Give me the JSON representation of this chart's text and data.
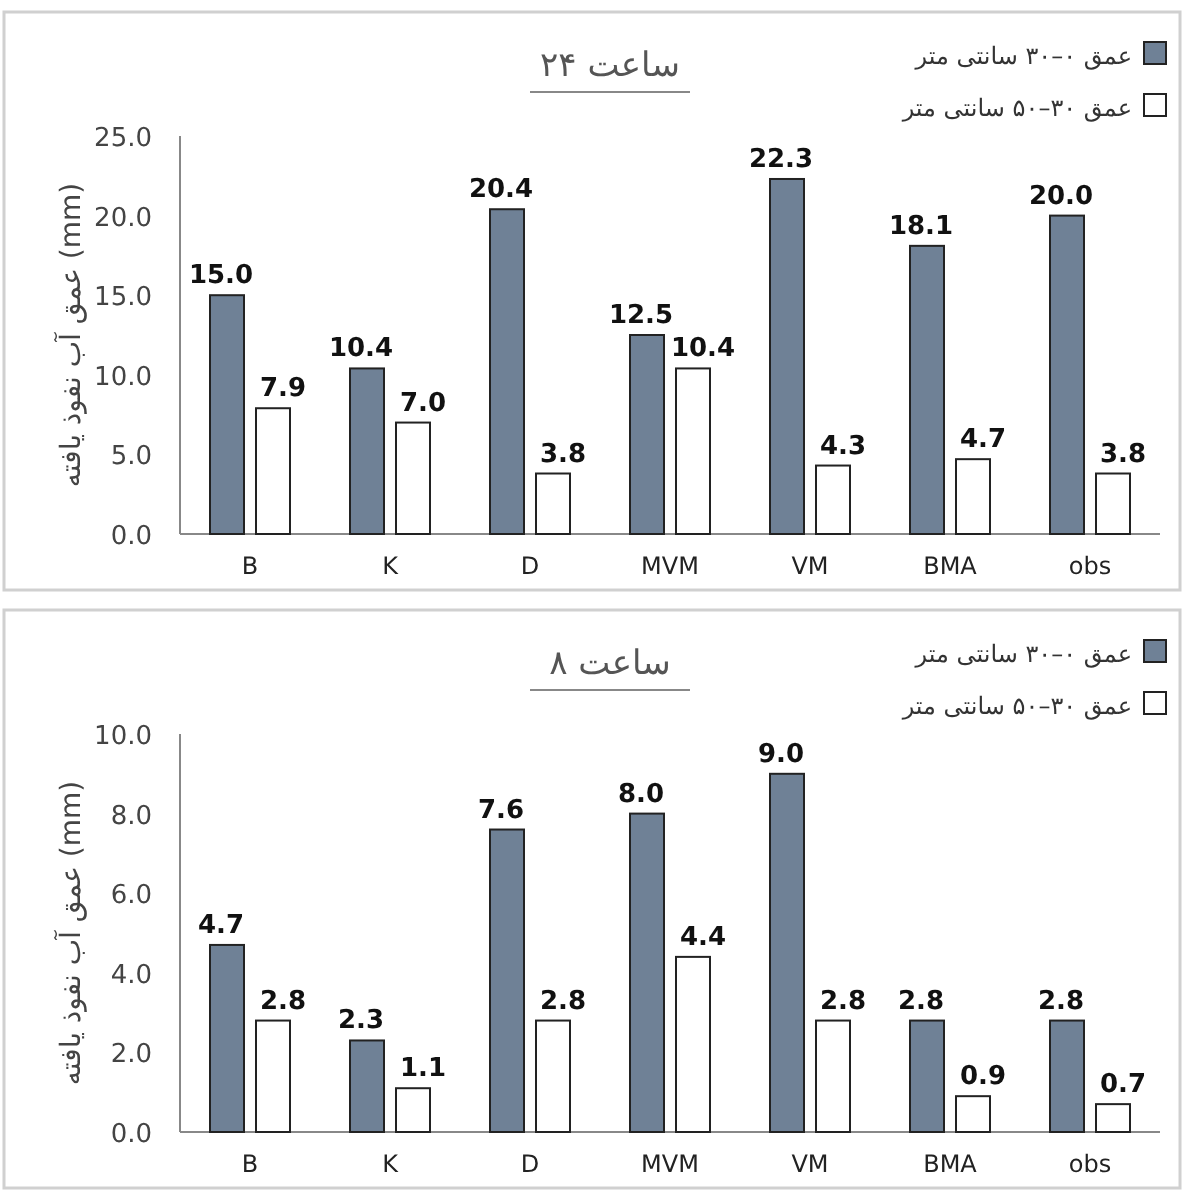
{
  "chart_data": [
    {
      "type": "bar",
      "title": "۲۴ ساعت",
      "ylabel": "عمق آب نفوذ یافته (mm)",
      "categories": [
        "B",
        "K",
        "D",
        "MVM",
        "VM",
        "BMA",
        "obs"
      ],
      "series": [
        {
          "name": "عمق ۰–۳۰ سانتی متر",
          "color": "#6f8196",
          "values": [
            15.0,
            10.4,
            20.4,
            12.5,
            22.3,
            18.1,
            20.0
          ],
          "value_labels": [
            "15.0",
            "10.4",
            "20.4",
            "12.5",
            "22.3",
            "18.1",
            "20.0"
          ]
        },
        {
          "name": "عمق ۳۰–۵۰ سانتی متر",
          "color": "#ffffff",
          "values": [
            7.9,
            7.0,
            3.8,
            10.4,
            4.3,
            4.7,
            3.8
          ],
          "value_labels": [
            "7.9",
            "7.0",
            "3.8",
            "10.4",
            "4.3",
            "4.7",
            "3.8"
          ]
        }
      ],
      "ylim": [
        0,
        25
      ],
      "yticks": [
        {
          "value": 0,
          "label": "0.0"
        },
        {
          "value": 5,
          "label": "5.0"
        },
        {
          "value": 10,
          "label": "10.0"
        },
        {
          "value": 15,
          "label": "15.0"
        },
        {
          "value": 20,
          "label": "20.0"
        },
        {
          "value": 25,
          "label": "25.0"
        }
      ],
      "grid": false,
      "legend": "top right"
    },
    {
      "type": "bar",
      "title": "۸ ساعت",
      "ylabel": "عمق آب نفوذ یافته (mm)",
      "categories": [
        "B",
        "K",
        "D",
        "MVM",
        "VM",
        "BMA",
        "obs"
      ],
      "series": [
        {
          "name": "عمق ۰–۳۰ سانتی متر",
          "color": "#6f8196",
          "values": [
            4.7,
            2.3,
            7.6,
            8.0,
            9.0,
            2.8,
            2.8
          ],
          "value_labels": [
            "4.7",
            "2.3",
            "7.6",
            "8.0",
            "9.0",
            "2.8",
            "2.8"
          ]
        },
        {
          "name": "عمق ۳۰–۵۰ سانتی متر",
          "color": "#ffffff",
          "values": [
            2.8,
            1.1,
            2.8,
            4.4,
            2.8,
            0.9,
            0.7
          ],
          "value_labels": [
            "2.8",
            "1.1",
            "2.8",
            "4.4",
            "2.8",
            "0.9",
            "0.7"
          ]
        }
      ],
      "ylim": [
        0,
        10
      ],
      "yticks": [
        {
          "value": 0,
          "label": "0.0"
        },
        {
          "value": 2,
          "label": "2.0"
        },
        {
          "value": 4,
          "label": "4.0"
        },
        {
          "value": 6,
          "label": "6.0"
        },
        {
          "value": 8,
          "label": "8.0"
        },
        {
          "value": 10,
          "label": "10.0"
        }
      ],
      "grid": false,
      "legend": "top right"
    }
  ]
}
